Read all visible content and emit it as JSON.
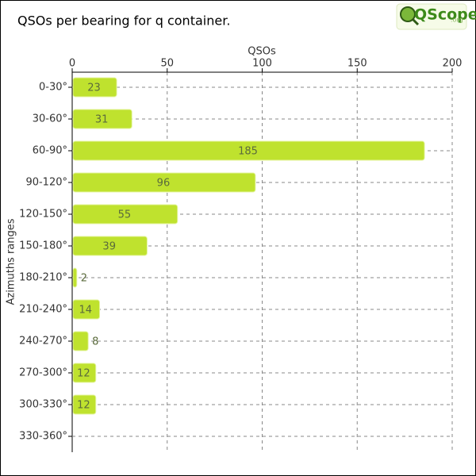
{
  "chart_data": {
    "type": "hbar",
    "title": "QSOs per bearing for q container.",
    "logo": "QScope",
    "logo_suffix": ".org",
    "x_label": "QSOs",
    "y_label": "Azimuths ranges",
    "categories": [
      "0-30°",
      "30-60°",
      "60-90°",
      "90-120°",
      "120-150°",
      "150-180°",
      "180-210°",
      "210-240°",
      "240-270°",
      "270-300°",
      "300-330°",
      "330-360°"
    ],
    "values": [
      23,
      31,
      185,
      96,
      55,
      39,
      2,
      14,
      8,
      12,
      12,
      null
    ],
    "color": "#bfe22e",
    "xlim": [
      0,
      200
    ],
    "xticks": [
      0,
      50,
      100,
      150,
      200
    ],
    "grid": true
  }
}
